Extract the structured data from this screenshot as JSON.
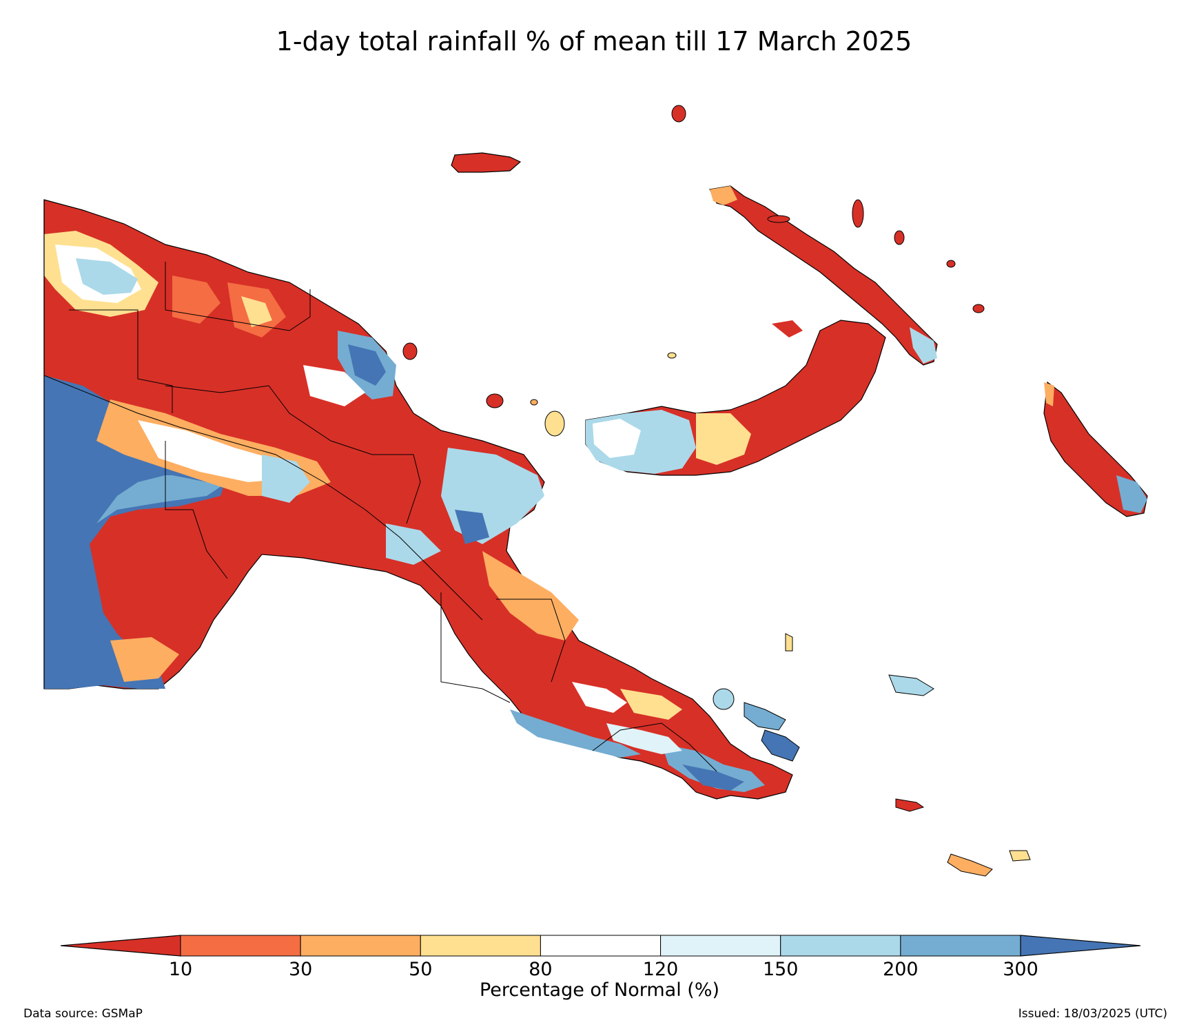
{
  "title": "1-day total rainfall % of mean till 17 March 2025",
  "colorbar": {
    "label": "Percentage of Normal (%)",
    "ticks": [
      "10",
      "30",
      "50",
      "80",
      "120",
      "150",
      "200",
      "300"
    ],
    "colors": [
      "#d73027",
      "#f46d43",
      "#fdae61",
      "#fee090",
      "#ffffff",
      "#e0f3f8",
      "#abd9e9",
      "#74add1",
      "#4575b4"
    ]
  },
  "footer": {
    "source": "Data source: GSMaP",
    "issued": "Issued: 18/03/2025 (UTC)"
  }
}
